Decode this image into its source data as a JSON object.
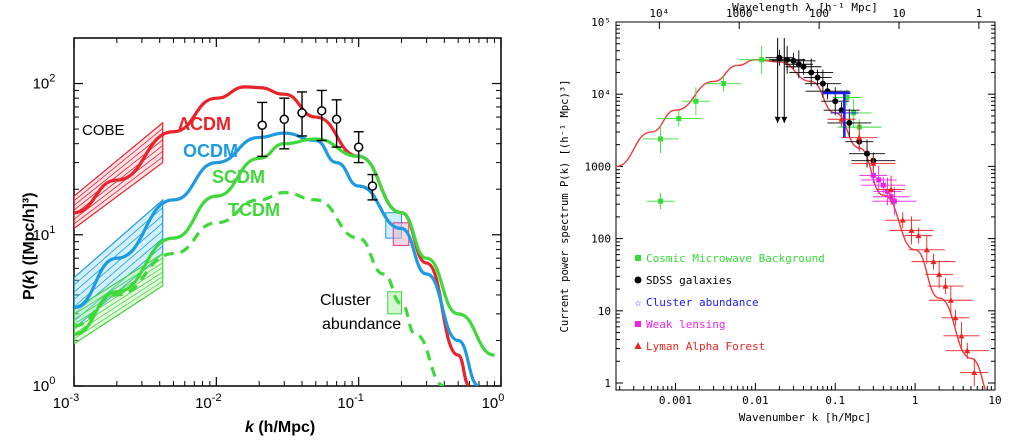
{
  "left_chart": {
    "ylabel": "P(k) ([Mpc/h]³)",
    "ylabel_main": "P(",
    "ylabel_k": "k",
    "ylabel_rest": ") ([Mpc/h]³)",
    "xlabel_k": "k",
    "xlabel_rest": " (h/Mpc)",
    "x_tick_base": "10",
    "x_ticks": [
      {
        "value": 0.001,
        "exp": "-3"
      },
      {
        "value": 0.01,
        "exp": "-2"
      },
      {
        "value": 0.1,
        "exp": "-1"
      },
      {
        "value": 1,
        "exp": "0"
      }
    ],
    "y_ticks": [
      {
        "value": 1,
        "exp": "0"
      },
      {
        "value": 10,
        "exp": "1"
      },
      {
        "value": 100,
        "exp": "2"
      }
    ],
    "annotations": {
      "cobe": "COBE",
      "lcdm": "ΛCDM",
      "ocdm": "OCDM",
      "scdm": "SCDM",
      "tcdm": "TCDM",
      "cluster_line1": "Cluster",
      "cluster_line2": "abundance"
    },
    "colors": {
      "lcdm": "#e8232a",
      "ocdm": "#1e9be0",
      "scdm": "#3fd83a",
      "tcdm": "#3fd83a"
    }
  },
  "chart_data": [
    {
      "type": "line",
      "xscale": "log",
      "yscale": "log",
      "xlim": [
        0.001,
        1
      ],
      "ylim": [
        1,
        200
      ],
      "series": [
        {
          "name": "ΛCDM",
          "style": "solid",
          "x": [
            0.001,
            0.002,
            0.005,
            0.01,
            0.016,
            0.02,
            0.03,
            0.05,
            0.1,
            0.2,
            0.3,
            0.5,
            0.6
          ],
          "y": [
            14,
            23,
            48,
            80,
            95,
            94,
            85,
            60,
            33,
            14,
            6.5,
            1.6,
            1.0
          ]
        },
        {
          "name": "OCDM",
          "style": "solid",
          "x": [
            0.001,
            0.002,
            0.005,
            0.01,
            0.02,
            0.03,
            0.05,
            0.07,
            0.1,
            0.2,
            0.3,
            0.5,
            0.7
          ],
          "y": [
            3.3,
            7,
            17,
            30,
            44,
            47,
            42,
            30,
            21,
            11,
            5.5,
            2.0,
            1.0
          ]
        },
        {
          "name": "SCDM",
          "style": "solid",
          "x": [
            0.001,
            0.002,
            0.005,
            0.01,
            0.02,
            0.03,
            0.05,
            0.1,
            0.2,
            0.3,
            0.5,
            0.9
          ],
          "y": [
            2.2,
            4.2,
            9.5,
            18,
            32,
            40,
            43,
            33,
            14,
            7,
            3.0,
            1.6
          ]
        },
        {
          "name": "TCDM",
          "style": "dashed",
          "x": [
            0.001,
            0.002,
            0.005,
            0.01,
            0.02,
            0.03,
            0.05,
            0.1,
            0.15,
            0.2,
            0.25,
            0.4
          ],
          "y": [
            2.5,
            4.0,
            7.5,
            12,
            17,
            19,
            17,
            9.5,
            5.5,
            3.5,
            2.2,
            1.0
          ]
        }
      ],
      "points": {
        "x": [
          0.021,
          0.03,
          0.04,
          0.055,
          0.07,
          0.1,
          0.125
        ],
        "y": [
          53,
          58,
          64,
          66,
          58,
          38,
          21
        ],
        "err_lo": [
          33,
          37,
          45,
          42,
          38,
          30,
          17
        ],
        "err_hi": [
          75,
          80,
          88,
          90,
          78,
          48,
          25
        ]
      }
    },
    {
      "type": "scatter",
      "title": "Wavelength λ [h⁻¹ Mpc]",
      "xlabel": "Wavenumber k [h/Mpc]",
      "ylabel": "Current power spectrum P(k) [(h⁻¹ Mpc)³]",
      "xscale": "log",
      "yscale": "log",
      "xlim": [
        0.00018,
        10
      ],
      "ylim": [
        0.8,
        100000
      ],
      "top_ticks": [
        "10⁴",
        "1000",
        "100",
        "10",
        "1"
      ],
      "x_ticks": [
        "0.001",
        "0.01",
        "0.1",
        "1",
        "10"
      ],
      "y_ticks": [
        "1",
        "10",
        "100",
        "1000",
        "10⁴",
        "10⁵"
      ],
      "legend_position": "bottom-left",
      "curve": {
        "x": [
          0.00018,
          0.0005,
          0.001,
          0.003,
          0.006,
          0.01,
          0.02,
          0.05,
          0.1,
          0.2,
          0.4,
          1,
          2,
          5,
          10
        ],
        "y": [
          1000,
          3000,
          6000,
          15000,
          25000,
          30000,
          28000,
          15000,
          5500,
          1800,
          400,
          70,
          15,
          2.2,
          0.5
        ]
      },
      "series": [
        {
          "name": "Cosmic Microwave Background",
          "color": "#33dd33",
          "marker": "square",
          "x": [
            0.00065,
            0.00065,
            0.0011,
            0.0018,
            0.004,
            0.012,
            0.14,
            0.17,
            0.2
          ],
          "y": [
            330,
            2400,
            4600,
            8000,
            14000,
            30000,
            9000,
            5500,
            3500
          ]
        },
        {
          "name": "SDSS galaxies",
          "color": "#000000",
          "marker": "circle",
          "x": [
            0.02,
            0.025,
            0.03,
            0.035,
            0.04,
            0.05,
            0.06,
            0.07,
            0.08,
            0.1,
            0.12,
            0.15,
            0.2,
            0.25,
            0.3
          ],
          "y": [
            32000,
            30000,
            29000,
            26000,
            24000,
            20000,
            17000,
            14000,
            11000,
            8000,
            6000,
            4000,
            2200,
            1500,
            1200
          ]
        },
        {
          "name": "Cluster abundance",
          "color": "#1a1aee",
          "marker": "star",
          "x": [
            0.13
          ],
          "y": [
            5500
          ]
        },
        {
          "name": "Weak lensing",
          "color": "#ee22ee",
          "marker": "square",
          "x": [
            0.3,
            0.35,
            0.4,
            0.45,
            0.5,
            0.55
          ],
          "y": [
            750,
            650,
            550,
            450,
            380,
            330
          ]
        },
        {
          "name": "Lyman Alpha Forest",
          "color": "#ee2222",
          "marker": "triangle",
          "x": [
            0.12,
            0.2,
            0.3,
            0.5,
            0.7,
            0.9,
            1.1,
            1.4,
            1.7,
            2.0,
            2.4,
            2.8,
            3.2,
            3.8,
            4.5,
            5.5
          ],
          "y": [
            4500,
            2500,
            1100,
            480,
            180,
            130,
            110,
            70,
            48,
            32,
            22,
            14,
            8,
            4.5,
            2.8,
            1.4
          ]
        }
      ]
    }
  ]
}
